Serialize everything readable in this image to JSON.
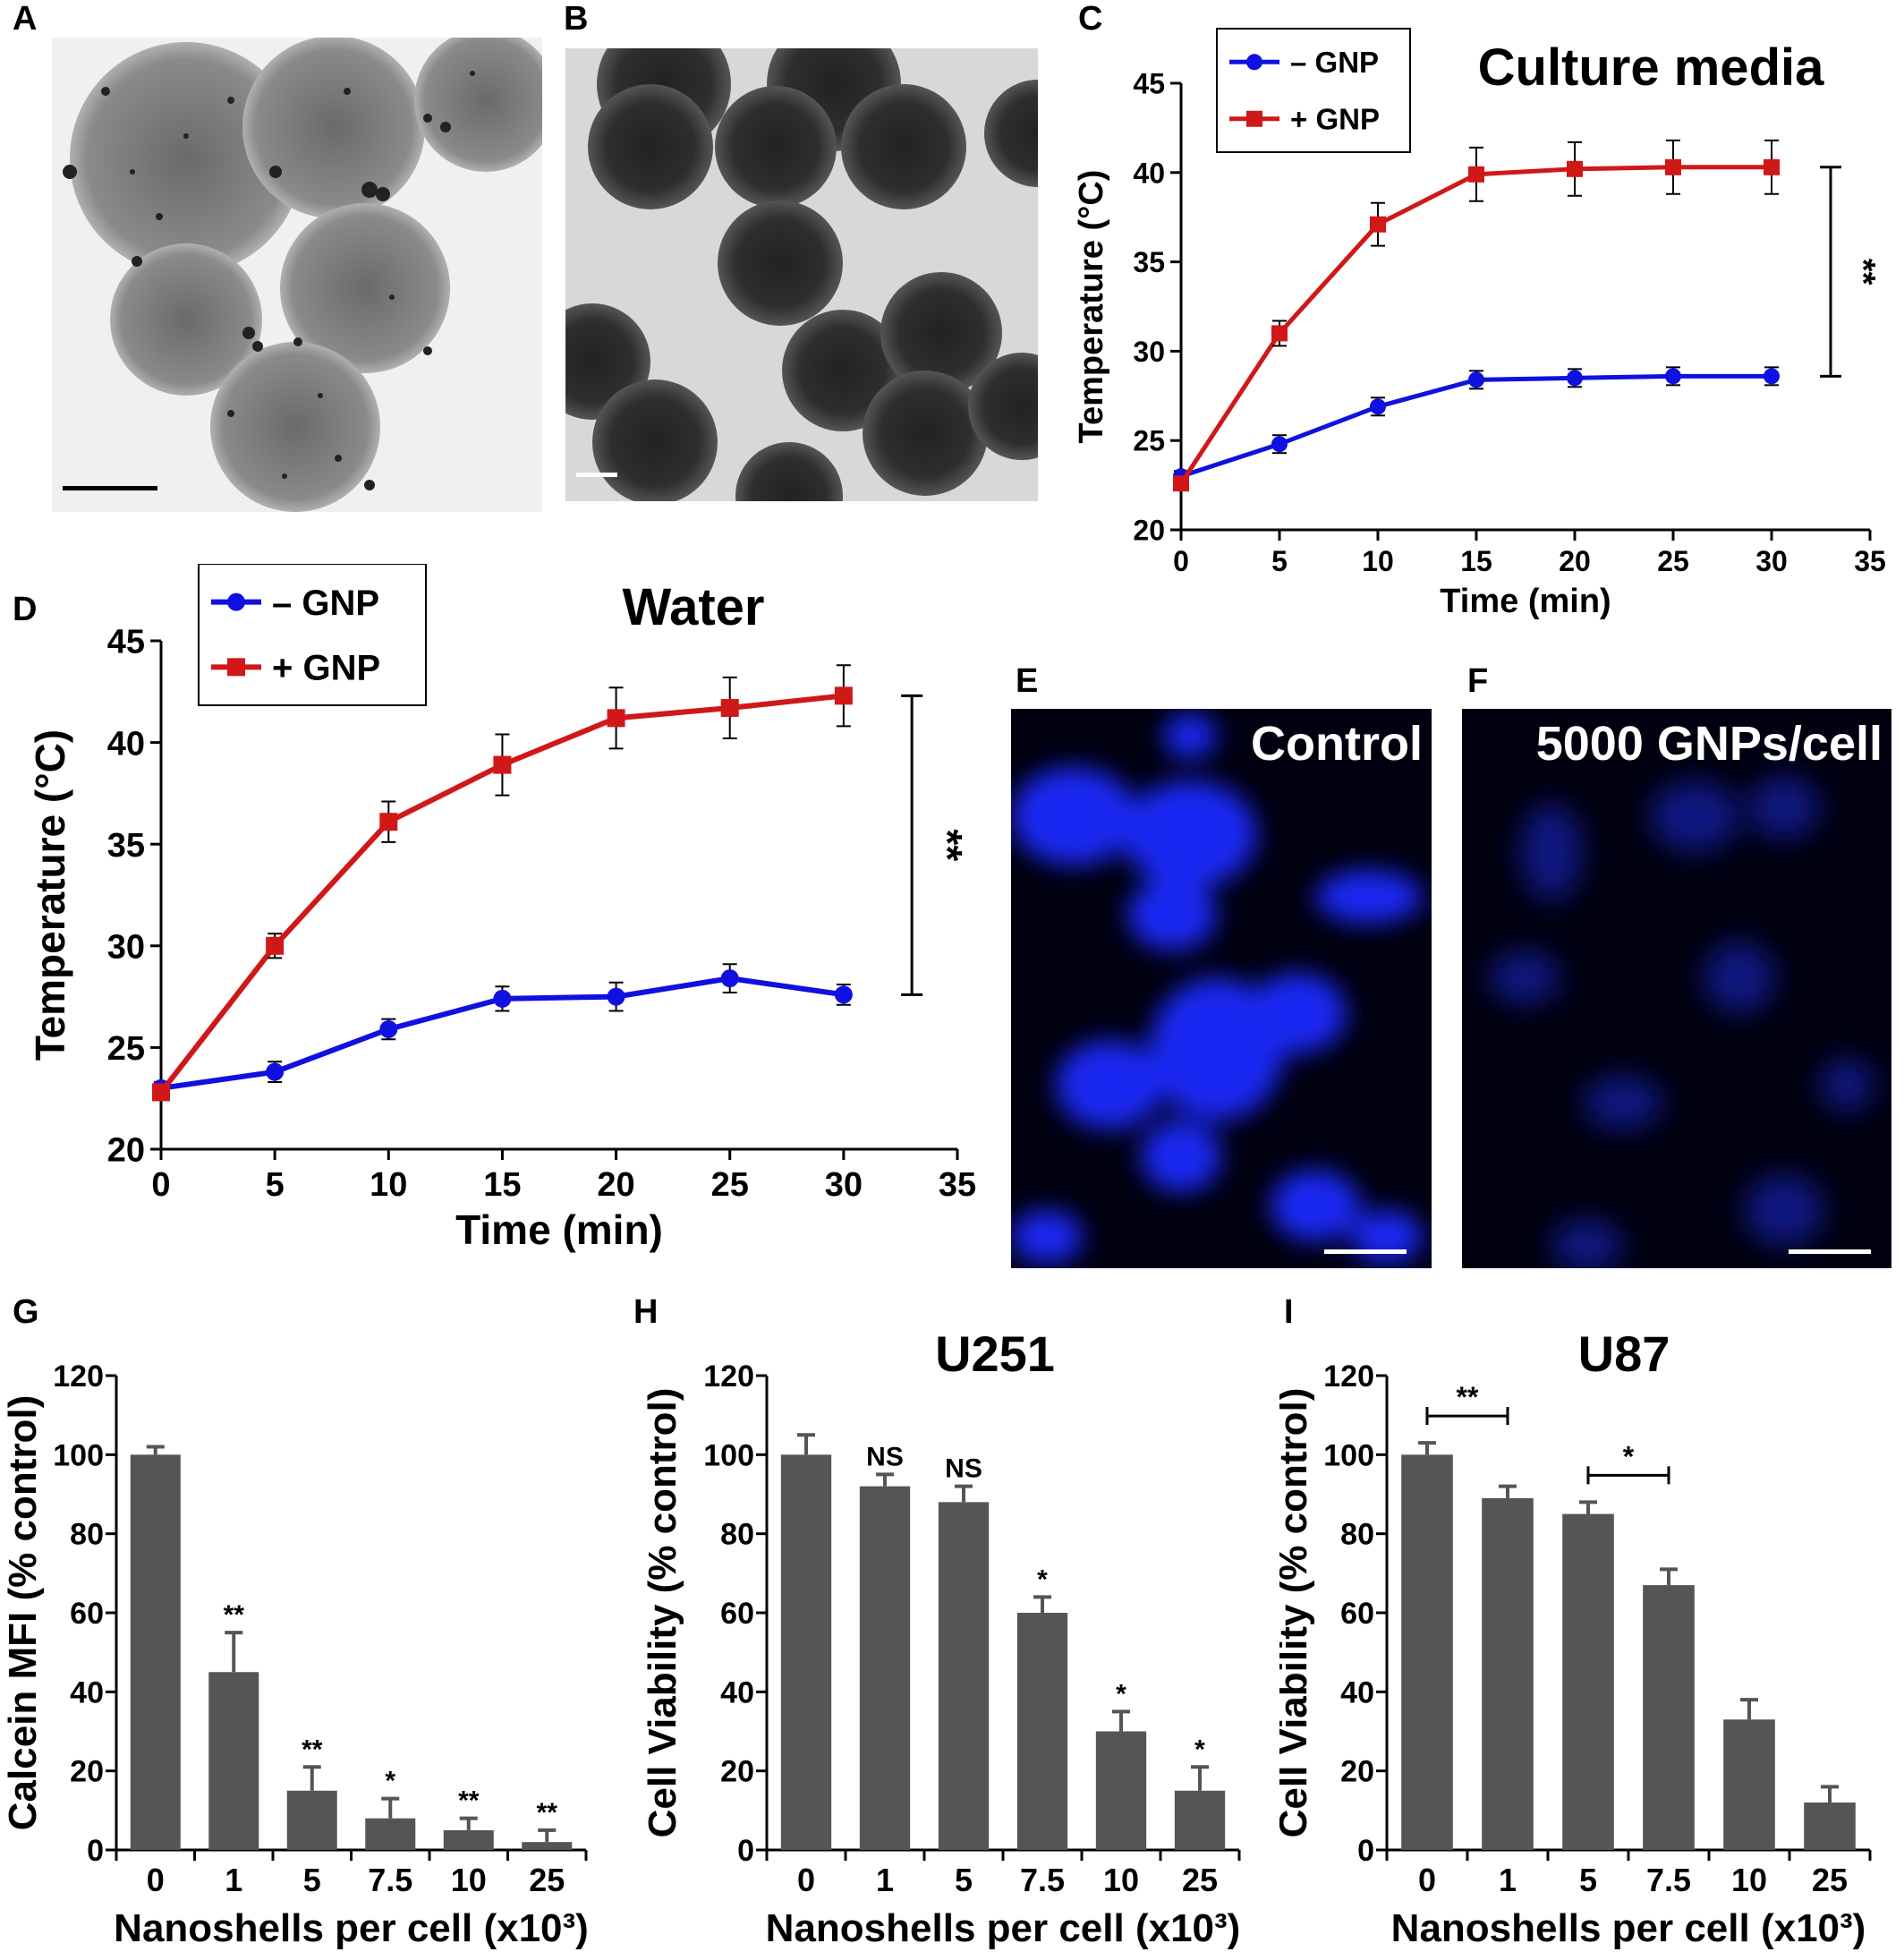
{
  "panel_labels": {
    "A": "A",
    "B": "B",
    "C": "C",
    "D": "D",
    "E": "E",
    "F": "F",
    "G": "G",
    "H": "H",
    "I": "I"
  },
  "micrographs": {
    "E_label": "Control",
    "F_label": "5000 GNPs/cell"
  },
  "colors": {
    "minus_gnp": "#1010e0",
    "plus_gnp": "#d01818",
    "bar": "#555555",
    "fluor": "#1a2aff"
  },
  "chart_data": [
    {
      "id": "C",
      "type": "line",
      "title": "Culture media",
      "xlabel": "Time (min)",
      "ylabel": "Temperature (°C)",
      "xlim": [
        0,
        35
      ],
      "ylim": [
        20,
        45
      ],
      "xticks": [
        0,
        5,
        10,
        15,
        20,
        25,
        30,
        35
      ],
      "yticks": [
        20,
        25,
        30,
        35,
        40,
        45
      ],
      "x": [
        0,
        5,
        10,
        15,
        20,
        25,
        30
      ],
      "series": [
        {
          "name": "– GNP",
          "values": [
            23.0,
            24.8,
            26.9,
            28.4,
            28.5,
            28.6,
            28.6
          ],
          "errors": [
            0.3,
            0.5,
            0.5,
            0.5,
            0.5,
            0.5,
            0.5
          ],
          "marker": "circle"
        },
        {
          "name": "+ GNP",
          "values": [
            22.6,
            31.0,
            37.1,
            39.9,
            40.2,
            40.3,
            40.3
          ],
          "errors": [
            0.3,
            0.7,
            1.2,
            1.5,
            1.5,
            1.5,
            1.5
          ],
          "marker": "square"
        }
      ],
      "significance": "**"
    },
    {
      "id": "D",
      "type": "line",
      "title": "Water",
      "xlabel": "Time (min)",
      "ylabel": "Temperature (°C)",
      "xlim": [
        0,
        35
      ],
      "ylim": [
        20,
        45
      ],
      "xticks": [
        0,
        5,
        10,
        15,
        20,
        25,
        30,
        35
      ],
      "yticks": [
        20,
        25,
        30,
        35,
        40,
        45
      ],
      "x": [
        0,
        5,
        10,
        15,
        20,
        25,
        30
      ],
      "series": [
        {
          "name": "– GNP",
          "values": [
            23.0,
            23.8,
            25.9,
            27.4,
            27.5,
            28.4,
            27.6
          ],
          "errors": [
            0.3,
            0.5,
            0.5,
            0.6,
            0.7,
            0.7,
            0.5
          ],
          "marker": "circle"
        },
        {
          "name": "+ GNP",
          "values": [
            22.8,
            30.0,
            36.1,
            38.9,
            41.2,
            41.7,
            42.3
          ],
          "errors": [
            0.3,
            0.6,
            1.0,
            1.5,
            1.5,
            1.5,
            1.5
          ],
          "marker": "square"
        }
      ],
      "significance": "**"
    },
    {
      "id": "G",
      "type": "bar",
      "title": "",
      "xlabel": "Nanoshells per cell (x10³)",
      "ylabel": "Calcein MFI (% control)",
      "ylim": [
        0,
        120
      ],
      "yticks": [
        0,
        20,
        40,
        60,
        80,
        100,
        120
      ],
      "categories": [
        "0",
        "1",
        "5",
        "7.5",
        "10",
        "25"
      ],
      "values": [
        100,
        45,
        15,
        8,
        5,
        2
      ],
      "errors": [
        2,
        10,
        6,
        5,
        3,
        3
      ],
      "annotations": [
        "",
        "**",
        "**",
        "*",
        "**",
        "**"
      ]
    },
    {
      "id": "H",
      "type": "bar",
      "title": "U251",
      "xlabel": "Nanoshells per cell (x10³)",
      "ylabel": "Cell Viability (% control)",
      "ylim": [
        0,
        120
      ],
      "yticks": [
        0,
        20,
        40,
        60,
        80,
        100,
        120
      ],
      "categories": [
        "0",
        "1",
        "5",
        "7.5",
        "10",
        "25"
      ],
      "values": [
        100,
        92,
        88,
        60,
        30,
        15
      ],
      "errors": [
        5,
        3,
        4,
        4,
        5,
        6
      ],
      "annotations": [
        "",
        "NS",
        "NS",
        "*",
        "*",
        "*"
      ]
    },
    {
      "id": "I",
      "type": "bar",
      "title": "U87",
      "xlabel": "Nanoshells per cell (x10³)",
      "ylabel": "Cell Viability (% control)",
      "ylim": [
        0,
        120
      ],
      "yticks": [
        0,
        20,
        40,
        60,
        80,
        100,
        120
      ],
      "categories": [
        "0",
        "1",
        "5",
        "7.5",
        "10",
        "25"
      ],
      "values": [
        100,
        89,
        85,
        67,
        33,
        12
      ],
      "errors": [
        3,
        3,
        3,
        4,
        5,
        4
      ],
      "annotations": [
        "",
        "",
        "",
        "",
        "",
        ""
      ],
      "brackets": [
        {
          "from": "0",
          "to": "1",
          "text": "**"
        },
        {
          "from": "5",
          "to": "7.5",
          "text": "*"
        }
      ]
    }
  ]
}
